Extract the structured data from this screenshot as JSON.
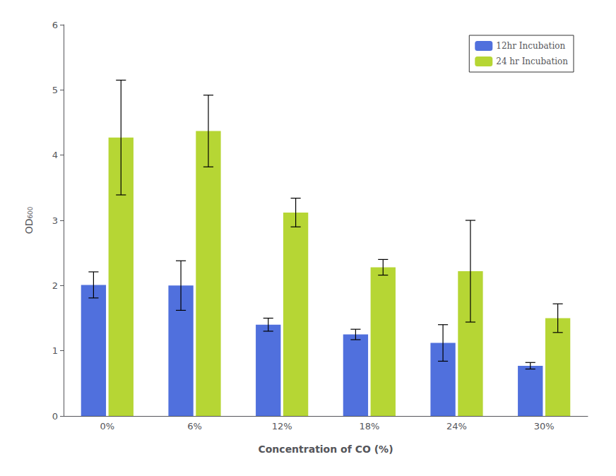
{
  "chart_data": {
    "type": "bar",
    "categories": [
      "0%",
      "6%",
      "12%",
      "18%",
      "24%",
      "30%"
    ],
    "series": [
      {
        "name": "12hr Incubation",
        "values": [
          2.01,
          2.0,
          1.4,
          1.25,
          1.12,
          0.77
        ],
        "errors": [
          0.2,
          0.38,
          0.1,
          0.08,
          0.28,
          0.05
        ]
      },
      {
        "name": "24 hr Incubation",
        "values": [
          4.27,
          4.37,
          3.12,
          2.28,
          2.22,
          1.5
        ],
        "errors": [
          0.88,
          0.55,
          0.22,
          0.12,
          0.78,
          0.22
        ]
      }
    ],
    "xlabel": "Concentration of CO (%)",
    "ylabel": "OD₆₀₀",
    "ylim": [
      0,
      6
    ],
    "yticks": [
      0,
      1,
      2,
      3,
      4,
      5,
      6
    ],
    "legend": "upper right",
    "grid": false
  }
}
